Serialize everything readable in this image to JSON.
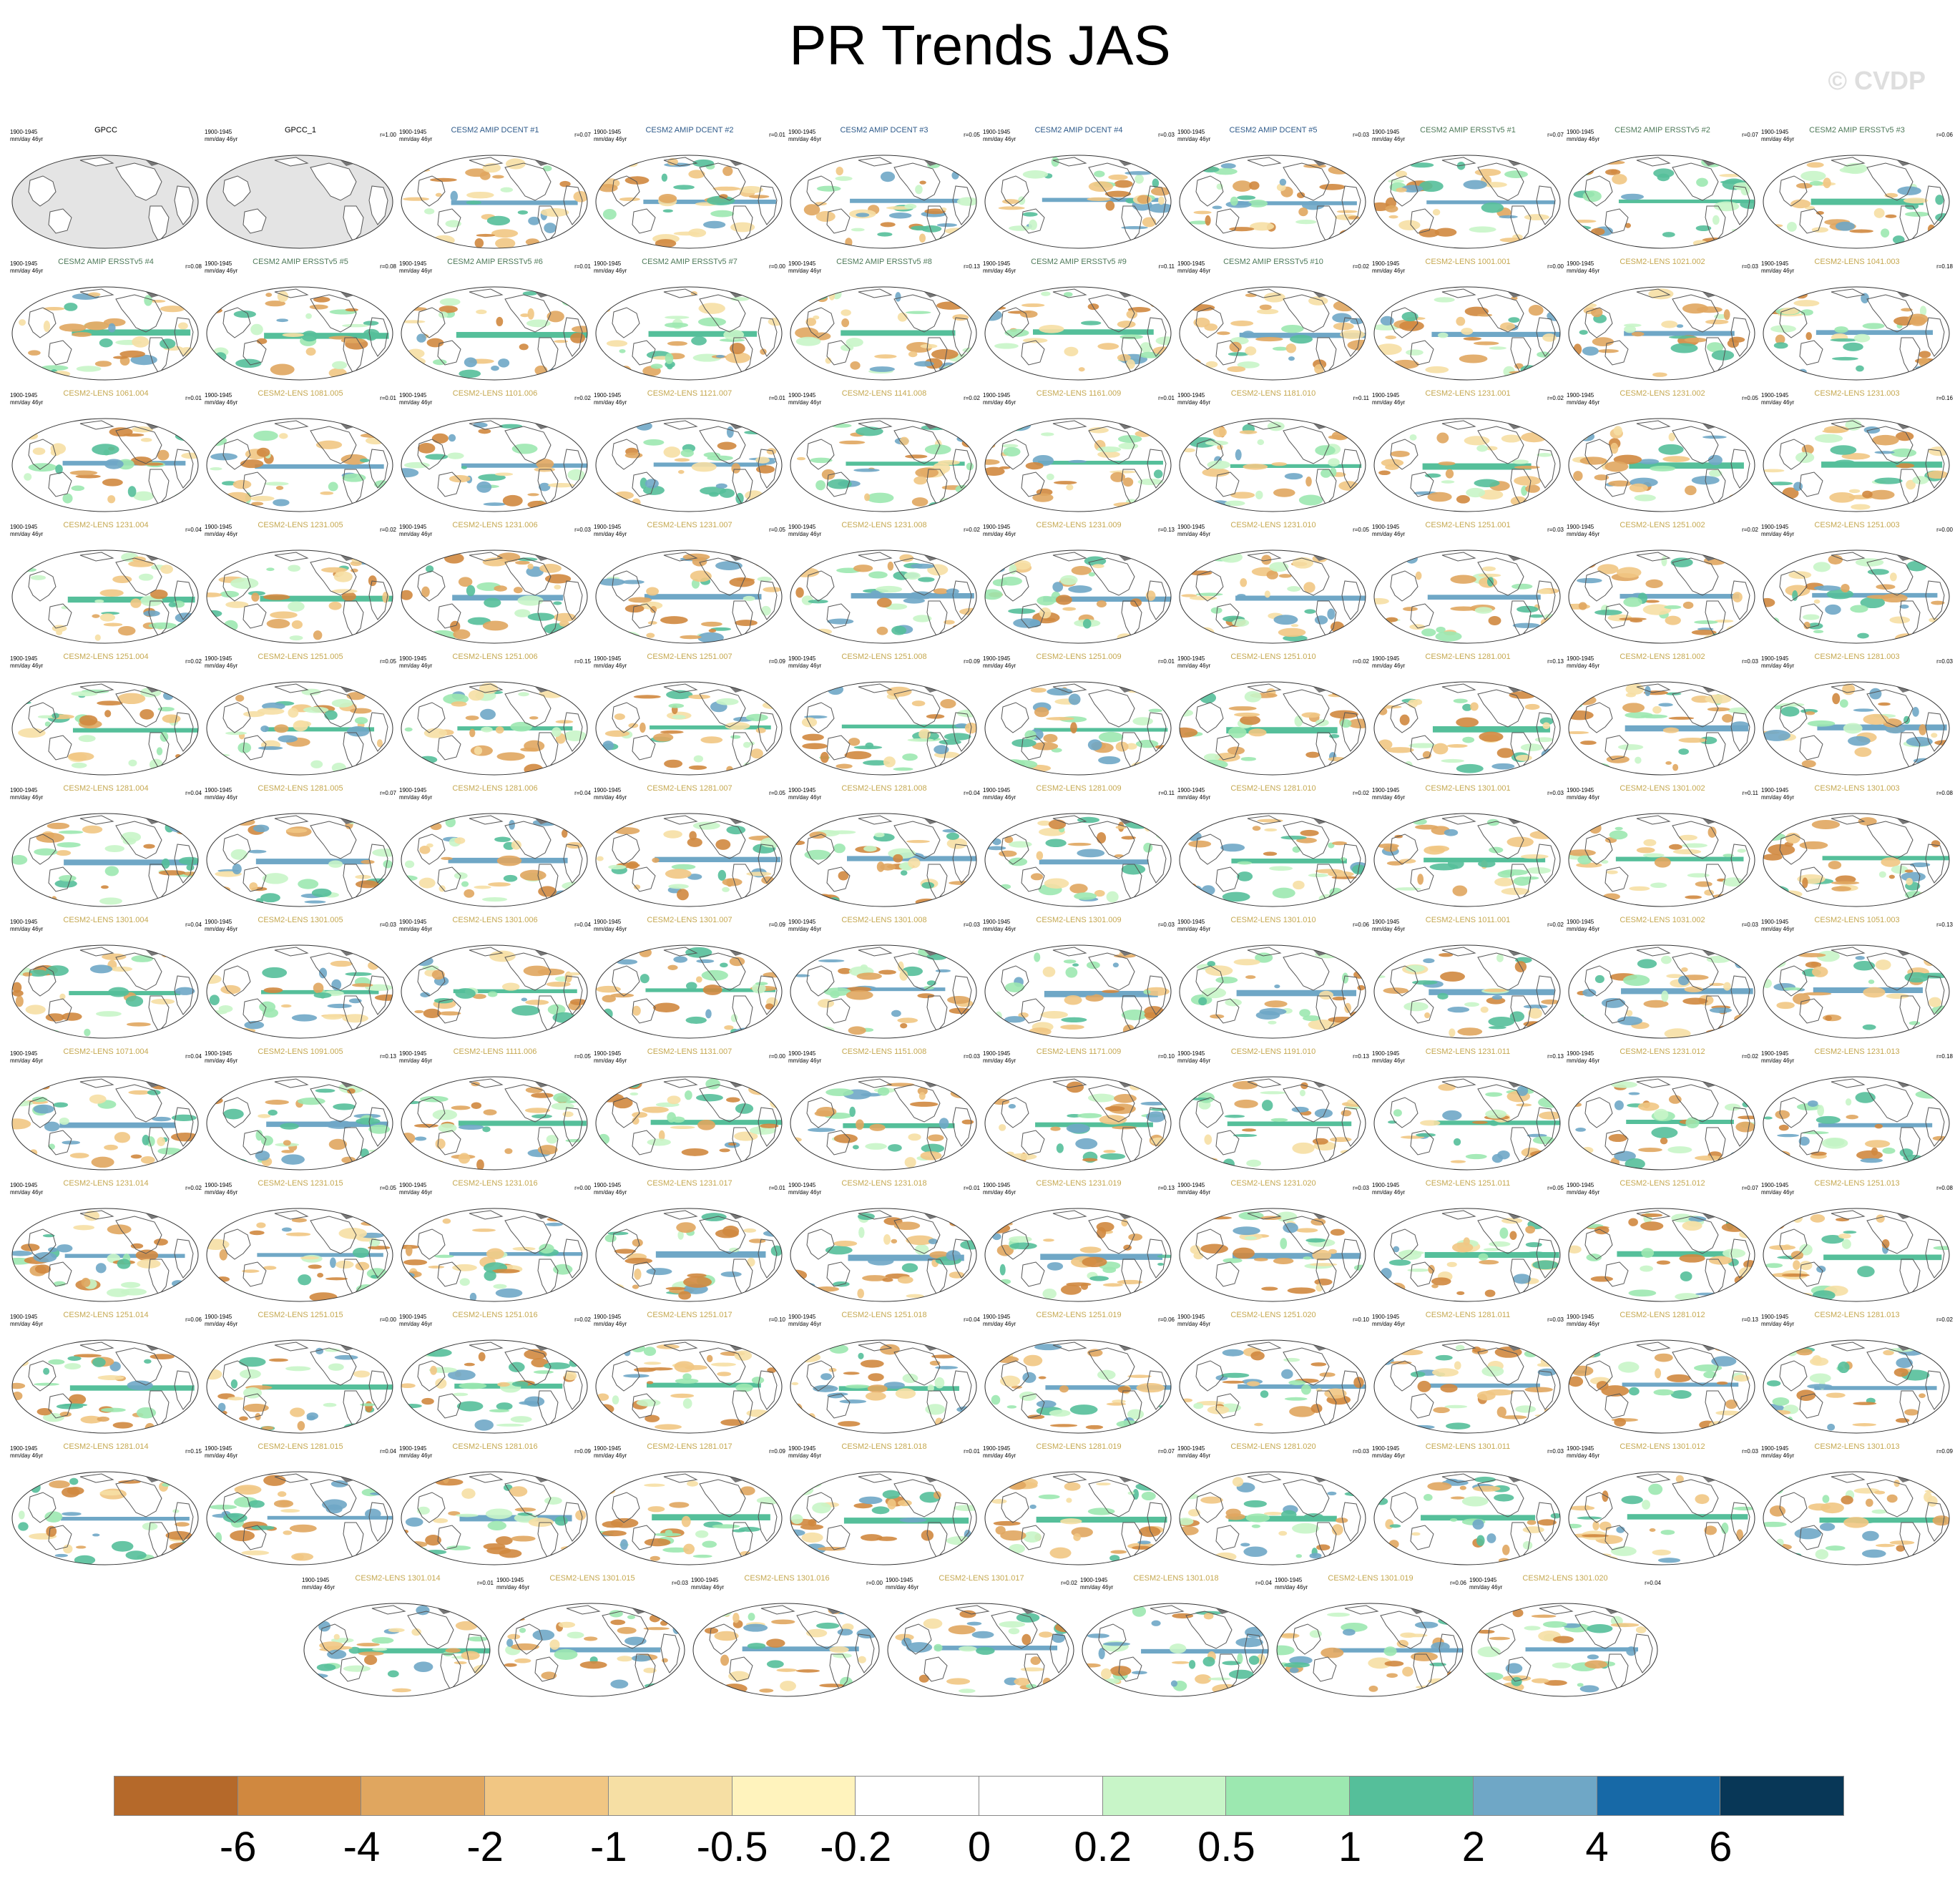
{
  "title": "PR Trends JAS",
  "watermark": "© CVDP",
  "colorbar": {
    "colors": [
      "#b5692a",
      "#d0883f",
      "#e0a65f",
      "#f1c683",
      "#f6dfa4",
      "#fff3bd",
      "#ffffff",
      "#ffffff",
      "#c8f5c8",
      "#9ce8b0",
      "#55bf9a",
      "#6fa7c6",
      "#1769a7",
      "#083757"
    ],
    "labels": [
      "-6",
      "-4",
      "-2",
      "-1",
      "-0.5",
      "-0.2",
      "0",
      "0.2",
      "0.5",
      "1",
      "2",
      "4",
      "6"
    ]
  },
  "panel_meta": {
    "years": "1900-1945",
    "units": "mm/day 46yr"
  },
  "title_colors": {
    "obs": "#000000",
    "dcent": "#2e5a8a",
    "ersst": "#4f7a5a",
    "lens": "#c5a850"
  },
  "chart_data": {
    "type": "map-grid",
    "variable": "PR",
    "season": "JAS",
    "period": "1900-1945",
    "units": "mm/day 46yr",
    "levels": [
      -6,
      -4,
      -2,
      -1,
      -0.5,
      -0.2,
      0,
      0.2,
      0.5,
      1,
      2,
      4,
      6
    ],
    "panels": [
      {
        "title": "GPCC",
        "kind": "obs",
        "r": ""
      },
      {
        "title": "GPCC_1",
        "kind": "obs",
        "r": "r=1.00"
      },
      {
        "title": "CESM2 AMIP DCENT #1",
        "kind": "dcent",
        "r": "r=0.07"
      },
      {
        "title": "CESM2 AMIP DCENT #2",
        "kind": "dcent",
        "r": "r=0.01"
      },
      {
        "title": "CESM2 AMIP DCENT #3",
        "kind": "dcent",
        "r": "r=0.05"
      },
      {
        "title": "CESM2 AMIP DCENT #4",
        "kind": "dcent",
        "r": "r=0.03"
      },
      {
        "title": "CESM2 AMIP DCENT #5",
        "kind": "dcent",
        "r": "r=0.03"
      },
      {
        "title": "CESM2 AMIP ERSSTv5 #1",
        "kind": "ersst",
        "r": "r=0.07"
      },
      {
        "title": "CESM2 AMIP ERSSTv5 #2",
        "kind": "ersst",
        "r": "r=0.07"
      },
      {
        "title": "CESM2 AMIP ERSSTv5 #3",
        "kind": "ersst",
        "r": "r=0.06"
      },
      {
        "title": "CESM2 AMIP ERSSTv5 #4",
        "kind": "ersst",
        "r": "r=0.08"
      },
      {
        "title": "CESM2 AMIP ERSSTv5 #5",
        "kind": "ersst",
        "r": "r=0.08"
      },
      {
        "title": "CESM2 AMIP ERSSTv5 #6",
        "kind": "ersst",
        "r": "r=0.01"
      },
      {
        "title": "CESM2 AMIP ERSSTv5 #7",
        "kind": "ersst",
        "r": "r=0.00"
      },
      {
        "title": "CESM2 AMIP ERSSTv5 #8",
        "kind": "ersst",
        "r": "r=0.13"
      },
      {
        "title": "CESM2 AMIP ERSSTv5 #9",
        "kind": "ersst",
        "r": "r=0.11"
      },
      {
        "title": "CESM2 AMIP ERSSTv5 #10",
        "kind": "ersst",
        "r": "r=0.02"
      },
      {
        "title": "CESM2-LENS 1001.001",
        "kind": "lens",
        "r": "r=0.00"
      },
      {
        "title": "CESM2-LENS 1021.002",
        "kind": "lens",
        "r": "r=0.03"
      },
      {
        "title": "CESM2-LENS 1041.003",
        "kind": "lens",
        "r": "r=0.18"
      },
      {
        "title": "CESM2-LENS 1061.004",
        "kind": "lens",
        "r": "r=0.01"
      },
      {
        "title": "CESM2-LENS 1081.005",
        "kind": "lens",
        "r": "r=0.01"
      },
      {
        "title": "CESM2-LENS 1101.006",
        "kind": "lens",
        "r": "r=0.02"
      },
      {
        "title": "CESM2-LENS 1121.007",
        "kind": "lens",
        "r": "r=0.01"
      },
      {
        "title": "CESM2-LENS 1141.008",
        "kind": "lens",
        "r": "r=0.02"
      },
      {
        "title": "CESM2-LENS 1161.009",
        "kind": "lens",
        "r": "r=0.01"
      },
      {
        "title": "CESM2-LENS 1181.010",
        "kind": "lens",
        "r": "r=0.11"
      },
      {
        "title": "CESM2-LENS 1231.001",
        "kind": "lens",
        "r": "r=0.02"
      },
      {
        "title": "CESM2-LENS 1231.002",
        "kind": "lens",
        "r": "r=0.05"
      },
      {
        "title": "CESM2-LENS 1231.003",
        "kind": "lens",
        "r": "r=0.16"
      },
      {
        "title": "CESM2-LENS 1231.004",
        "kind": "lens",
        "r": "r=0.04"
      },
      {
        "title": "CESM2-LENS 1231.005",
        "kind": "lens",
        "r": "r=0.02"
      },
      {
        "title": "CESM2-LENS 1231.006",
        "kind": "lens",
        "r": "r=0.03"
      },
      {
        "title": "CESM2-LENS 1231.007",
        "kind": "lens",
        "r": "r=0.05"
      },
      {
        "title": "CESM2-LENS 1231.008",
        "kind": "lens",
        "r": "r=0.02"
      },
      {
        "title": "CESM2-LENS 1231.009",
        "kind": "lens",
        "r": "r=0.13"
      },
      {
        "title": "CESM2-LENS 1231.010",
        "kind": "lens",
        "r": "r=0.05"
      },
      {
        "title": "CESM2-LENS 1251.001",
        "kind": "lens",
        "r": "r=0.03"
      },
      {
        "title": "CESM2-LENS 1251.002",
        "kind": "lens",
        "r": "r=0.02"
      },
      {
        "title": "CESM2-LENS 1251.003",
        "kind": "lens",
        "r": "r=0.00"
      },
      {
        "title": "CESM2-LENS 1251.004",
        "kind": "lens",
        "r": "r=0.02"
      },
      {
        "title": "CESM2-LENS 1251.005",
        "kind": "lens",
        "r": "r=0.05"
      },
      {
        "title": "CESM2-LENS 1251.006",
        "kind": "lens",
        "r": "r=0.15"
      },
      {
        "title": "CESM2-LENS 1251.007",
        "kind": "lens",
        "r": "r=0.09"
      },
      {
        "title": "CESM2-LENS 1251.008",
        "kind": "lens",
        "r": "r=0.09"
      },
      {
        "title": "CESM2-LENS 1251.009",
        "kind": "lens",
        "r": "r=0.01"
      },
      {
        "title": "CESM2-LENS 1251.010",
        "kind": "lens",
        "r": "r=0.02"
      },
      {
        "title": "CESM2-LENS 1281.001",
        "kind": "lens",
        "r": "r=0.13"
      },
      {
        "title": "CESM2-LENS 1281.002",
        "kind": "lens",
        "r": "r=0.03"
      },
      {
        "title": "CESM2-LENS 1281.003",
        "kind": "lens",
        "r": "r=0.03"
      },
      {
        "title": "CESM2-LENS 1281.004",
        "kind": "lens",
        "r": "r=0.04"
      },
      {
        "title": "CESM2-LENS 1281.005",
        "kind": "lens",
        "r": "r=0.07"
      },
      {
        "title": "CESM2-LENS 1281.006",
        "kind": "lens",
        "r": "r=0.04"
      },
      {
        "title": "CESM2-LENS 1281.007",
        "kind": "lens",
        "r": "r=0.05"
      },
      {
        "title": "CESM2-LENS 1281.008",
        "kind": "lens",
        "r": "r=0.04"
      },
      {
        "title": "CESM2-LENS 1281.009",
        "kind": "lens",
        "r": "r=0.11"
      },
      {
        "title": "CESM2-LENS 1281.010",
        "kind": "lens",
        "r": "r=0.02"
      },
      {
        "title": "CESM2-LENS 1301.001",
        "kind": "lens",
        "r": "r=0.03"
      },
      {
        "title": "CESM2-LENS 1301.002",
        "kind": "lens",
        "r": "r=0.11"
      },
      {
        "title": "CESM2-LENS 1301.003",
        "kind": "lens",
        "r": "r=0.08"
      },
      {
        "title": "CESM2-LENS 1301.004",
        "kind": "lens",
        "r": "r=0.04"
      },
      {
        "title": "CESM2-LENS 1301.005",
        "kind": "lens",
        "r": "r=0.03"
      },
      {
        "title": "CESM2-LENS 1301.006",
        "kind": "lens",
        "r": "r=0.04"
      },
      {
        "title": "CESM2-LENS 1301.007",
        "kind": "lens",
        "r": "r=0.09"
      },
      {
        "title": "CESM2-LENS 1301.008",
        "kind": "lens",
        "r": "r=0.03"
      },
      {
        "title": "CESM2-LENS 1301.009",
        "kind": "lens",
        "r": "r=0.03"
      },
      {
        "title": "CESM2-LENS 1301.010",
        "kind": "lens",
        "r": "r=0.06"
      },
      {
        "title": "CESM2-LENS 1011.001",
        "kind": "lens",
        "r": "r=0.02"
      },
      {
        "title": "CESM2-LENS 1031.002",
        "kind": "lens",
        "r": "r=0.03"
      },
      {
        "title": "CESM2-LENS 1051.003",
        "kind": "lens",
        "r": "r=0.13"
      },
      {
        "title": "CESM2-LENS 1071.004",
        "kind": "lens",
        "r": "r=0.04"
      },
      {
        "title": "CESM2-LENS 1091.005",
        "kind": "lens",
        "r": "r=0.13"
      },
      {
        "title": "CESM2-LENS 1111.006",
        "kind": "lens",
        "r": "r=0.05"
      },
      {
        "title": "CESM2-LENS 1131.007",
        "kind": "lens",
        "r": "r=0.00"
      },
      {
        "title": "CESM2-LENS 1151.008",
        "kind": "lens",
        "r": "r=0.03"
      },
      {
        "title": "CESM2-LENS 1171.009",
        "kind": "lens",
        "r": "r=0.10"
      },
      {
        "title": "CESM2-LENS 1191.010",
        "kind": "lens",
        "r": "r=0.13"
      },
      {
        "title": "CESM2-LENS 1231.011",
        "kind": "lens",
        "r": "r=0.13"
      },
      {
        "title": "CESM2-LENS 1231.012",
        "kind": "lens",
        "r": "r=0.02"
      },
      {
        "title": "CESM2-LENS 1231.013",
        "kind": "lens",
        "r": "r=0.18"
      },
      {
        "title": "CESM2-LENS 1231.014",
        "kind": "lens",
        "r": "r=0.02"
      },
      {
        "title": "CESM2-LENS 1231.015",
        "kind": "lens",
        "r": "r=0.05"
      },
      {
        "title": "CESM2-LENS 1231.016",
        "kind": "lens",
        "r": "r=0.00"
      },
      {
        "title": "CESM2-LENS 1231.017",
        "kind": "lens",
        "r": "r=0.01"
      },
      {
        "title": "CESM2-LENS 1231.018",
        "kind": "lens",
        "r": "r=0.01"
      },
      {
        "title": "CESM2-LENS 1231.019",
        "kind": "lens",
        "r": "r=0.13"
      },
      {
        "title": "CESM2-LENS 1231.020",
        "kind": "lens",
        "r": "r=0.03"
      },
      {
        "title": "CESM2-LENS 1251.011",
        "kind": "lens",
        "r": "r=0.05"
      },
      {
        "title": "CESM2-LENS 1251.012",
        "kind": "lens",
        "r": "r=0.07"
      },
      {
        "title": "CESM2-LENS 1251.013",
        "kind": "lens",
        "r": "r=0.08"
      },
      {
        "title": "CESM2-LENS 1251.014",
        "kind": "lens",
        "r": "r=0.06"
      },
      {
        "title": "CESM2-LENS 1251.015",
        "kind": "lens",
        "r": "r=0.00"
      },
      {
        "title": "CESM2-LENS 1251.016",
        "kind": "lens",
        "r": "r=0.02"
      },
      {
        "title": "CESM2-LENS 1251.017",
        "kind": "lens",
        "r": "r=0.10"
      },
      {
        "title": "CESM2-LENS 1251.018",
        "kind": "lens",
        "r": "r=0.04"
      },
      {
        "title": "CESM2-LENS 1251.019",
        "kind": "lens",
        "r": "r=0.06"
      },
      {
        "title": "CESM2-LENS 1251.020",
        "kind": "lens",
        "r": "r=0.10"
      },
      {
        "title": "CESM2-LENS 1281.011",
        "kind": "lens",
        "r": "r=0.03"
      },
      {
        "title": "CESM2-LENS 1281.012",
        "kind": "lens",
        "r": "r=0.13"
      },
      {
        "title": "CESM2-LENS 1281.013",
        "kind": "lens",
        "r": "r=0.02"
      },
      {
        "title": "CESM2-LENS 1281.014",
        "kind": "lens",
        "r": "r=0.15"
      },
      {
        "title": "CESM2-LENS 1281.015",
        "kind": "lens",
        "r": "r=0.04"
      },
      {
        "title": "CESM2-LENS 1281.016",
        "kind": "lens",
        "r": "r=0.09"
      },
      {
        "title": "CESM2-LENS 1281.017",
        "kind": "lens",
        "r": "r=0.09"
      },
      {
        "title": "CESM2-LENS 1281.018",
        "kind": "lens",
        "r": "r=0.01"
      },
      {
        "title": "CESM2-LENS 1281.019",
        "kind": "lens",
        "r": "r=0.07"
      },
      {
        "title": "CESM2-LENS 1281.020",
        "kind": "lens",
        "r": "r=0.03"
      },
      {
        "title": "CESM2-LENS 1301.011",
        "kind": "lens",
        "r": "r=0.03"
      },
      {
        "title": "CESM2-LENS 1301.012",
        "kind": "lens",
        "r": "r=0.03"
      },
      {
        "title": "CESM2-LENS 1301.013",
        "kind": "lens",
        "r": "r=0.09"
      },
      {
        "title": "CESM2-LENS 1301.014",
        "kind": "lens",
        "r": "r=0.01"
      },
      {
        "title": "CESM2-LENS 1301.015",
        "kind": "lens",
        "r": "r=0.03"
      },
      {
        "title": "CESM2-LENS 1301.016",
        "kind": "lens",
        "r": "r=0.00"
      },
      {
        "title": "CESM2-LENS 1301.017",
        "kind": "lens",
        "r": "r=0.02"
      },
      {
        "title": "CESM2-LENS 1301.018",
        "kind": "lens",
        "r": "r=0.04"
      },
      {
        "title": "CESM2-LENS 1301.019",
        "kind": "lens",
        "r": "r=0.06"
      },
      {
        "title": "CESM2-LENS 1301.020",
        "kind": "lens",
        "r": "r=0.04"
      }
    ]
  }
}
